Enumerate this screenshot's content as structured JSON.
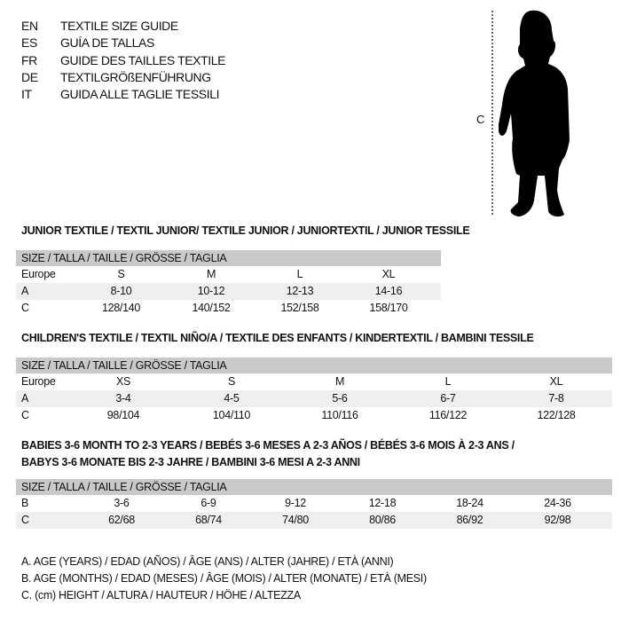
{
  "languages": [
    {
      "code": "EN",
      "title": "TEXTILE SIZE GUIDE"
    },
    {
      "code": "ES",
      "title": "GUÍA DE TALLAS"
    },
    {
      "code": "FR",
      "title": "GUIDE DES TAILLES TEXTILE"
    },
    {
      "code": "DE",
      "title": "TEXTILGRÖßENFÜHRUNG"
    },
    {
      "code": "IT",
      "title": "GUIDA ALLE TAGLIE TESSILI"
    }
  ],
  "figure": {
    "measure_label": "C",
    "icon": "child-silhouette-icon"
  },
  "junior": {
    "heading": "JUNIOR TEXTILE / TEXTIL JUNIOR/ TEXTILE JUNIOR / JUNIORTEXTIL / JUNIOR TESSILE",
    "header": "SIZE / TALLA / TAILLE / GRÖSSE / TAGLIA",
    "rows": [
      {
        "label": "Europe",
        "cells": [
          "S",
          "M",
          "L",
          "XL"
        ]
      },
      {
        "label": "A",
        "cells": [
          "8-10",
          "10-12",
          "12-13",
          "14-16"
        ]
      },
      {
        "label": "C",
        "cells": [
          "128/140",
          "140/152",
          "152/158",
          "158/170"
        ]
      }
    ]
  },
  "children": {
    "heading": "CHILDREN'S TEXTILE / TEXTIL NIÑO/A / TEXTILE DES ENFANTS / KINDERTEXTIL / BAMBINI TESSILE",
    "header": "SIZE / TALLA / TAILLE / GRÖSSE / TAGLIA",
    "rows": [
      {
        "label": "Europe",
        "cells": [
          "XS",
          "S",
          "M",
          "L",
          "XL"
        ]
      },
      {
        "label": "A",
        "cells": [
          "3-4",
          "4-5",
          "5-6",
          "6-7",
          "7-8"
        ]
      },
      {
        "label": "C",
        "cells": [
          "98/104",
          "104/110",
          "110/116",
          "116/122",
          "122/128"
        ]
      }
    ]
  },
  "babies": {
    "heading_line1": "BABIES 3-6 MONTH TO 2-3 YEARS / BEBÉS 3-6 MESES A 2-3 AÑOS / BÉBÉS 3-6 MOIS À 2-3 ANS /",
    "heading_line2": "BABYS 3-6 MONATE BIS 2-3 JAHRE / BAMBINI 3-6 MESI A 2-3 ANNI",
    "header": "SIZE / TALLA / TAILLE / GRÖSSE / TAGLIA",
    "rows": [
      {
        "label": "B",
        "cells": [
          "3-6",
          "6-9",
          "9-12",
          "12-18",
          "18-24",
          "24-36"
        ]
      },
      {
        "label": "C",
        "cells": [
          "62/68",
          "68/74",
          "74/80",
          "80/86",
          "86/92",
          "92/98"
        ]
      }
    ]
  },
  "legend": [
    "A. AGE (YEARS) / EDAD (AÑOS) / ÂGE (ANS) / ALTER (JAHRE) / ETÀ (ANNI)",
    "B. AGE (MONTHS) / EDAD (MESES) / ÂGE (MOIS) / ALTER (MONATE) / ETÀ (MESI)",
    "C. (cm) HEIGHT / ALTURA / HAUTEUR / HÖHE / ALTEZZA"
  ],
  "colors": {
    "header_bg": "#c9c9c9",
    "row_shade": "#efefef"
  }
}
